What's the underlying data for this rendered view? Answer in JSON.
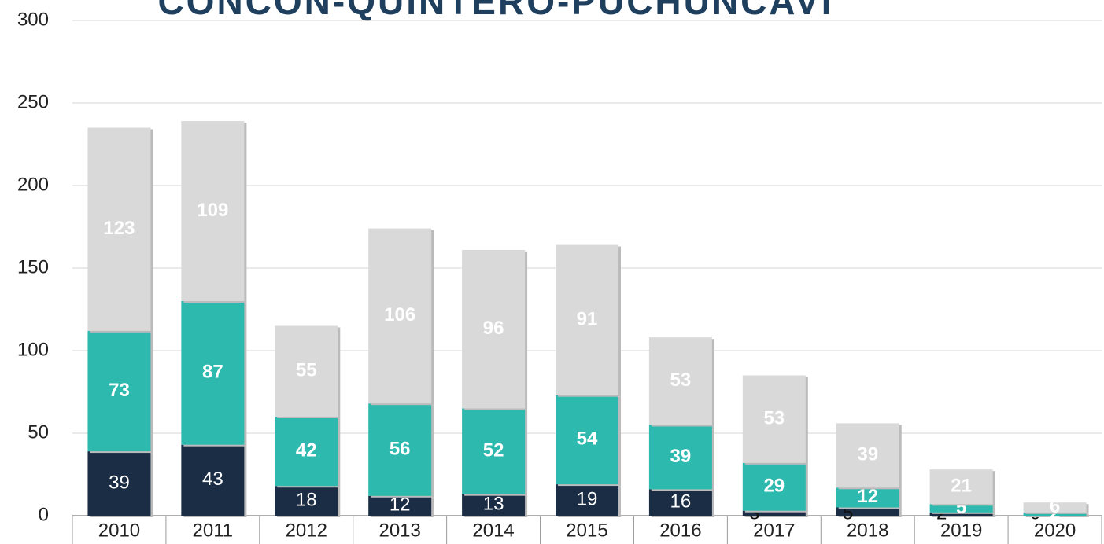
{
  "chart_data": {
    "type": "stacked_bar",
    "title": "CONCON-QUINTERO-PUCHUNCAVI",
    "categories": [
      "2010",
      "2011",
      "2012",
      "2013",
      "2014",
      "2015",
      "2016",
      "2017",
      "2018",
      "2019",
      "2020"
    ],
    "series": [
      {
        "color": "#1b2d45",
        "values": [
          39,
          43,
          18,
          12,
          13,
          19,
          16,
          3,
          5,
          2,
          0
        ]
      },
      {
        "color": "#2eb9ae",
        "values": [
          73,
          87,
          42,
          56,
          52,
          54,
          39,
          29,
          12,
          5,
          2
        ]
      },
      {
        "color": "#d9d9d9",
        "values": [
          123,
          109,
          55,
          106,
          96,
          91,
          53,
          53,
          39,
          21,
          6
        ]
      }
    ],
    "ylim": [
      0,
      300
    ],
    "yticks": [
      0,
      50,
      100,
      150,
      200,
      250,
      300
    ],
    "grid": true
  }
}
